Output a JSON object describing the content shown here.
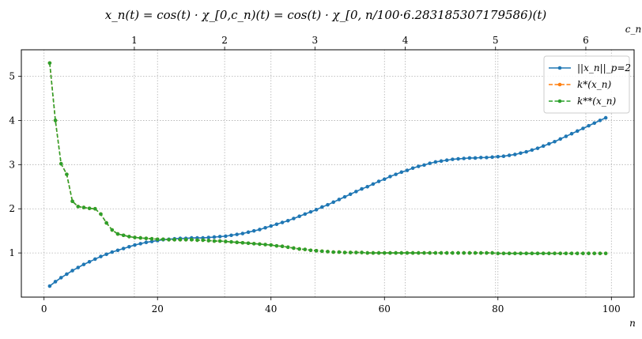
{
  "chart_data": {
    "type": "line",
    "title": "x_n(t) = cos(t) · χ_[0,c_n)(t) = cos(t) · χ_[0, n/100·6.283185307179586)(t)",
    "xlabel": "n",
    "x2label": "c_n",
    "ylabel": "",
    "xlim": [
      -4,
      104
    ],
    "ylim": [
      0.0,
      5.6
    ],
    "x_ticks": [
      0,
      20,
      40,
      60,
      80,
      100
    ],
    "y_ticks": [
      1,
      2,
      3,
      4,
      5
    ],
    "x2_ticks": [
      1,
      2,
      3,
      4,
      5,
      6
    ],
    "x2_scale_per_n": 0.06283185307179585,
    "grid": true,
    "legend_position": "upper-right",
    "x": [
      1,
      2,
      3,
      4,
      5,
      6,
      7,
      8,
      9,
      10,
      11,
      12,
      13,
      14,
      15,
      16,
      17,
      18,
      19,
      20,
      21,
      22,
      23,
      24,
      25,
      26,
      27,
      28,
      29,
      30,
      31,
      32,
      33,
      34,
      35,
      36,
      37,
      38,
      39,
      40,
      41,
      42,
      43,
      44,
      45,
      46,
      47,
      48,
      49,
      50,
      51,
      52,
      53,
      54,
      55,
      56,
      57,
      58,
      59,
      60,
      61,
      62,
      63,
      64,
      65,
      66,
      67,
      68,
      69,
      70,
      71,
      72,
      73,
      74,
      75,
      76,
      77,
      78,
      79,
      80,
      81,
      82,
      83,
      84,
      85,
      86,
      87,
      88,
      89,
      90,
      91,
      92,
      93,
      94,
      95,
      96,
      97,
      98,
      99
    ],
    "series": [
      {
        "name": "||x_n||_p=2",
        "color": "#1f77b4",
        "linestyle": "solid",
        "values": [
          0.25,
          0.35,
          0.44,
          0.52,
          0.6,
          0.67,
          0.74,
          0.8,
          0.86,
          0.92,
          0.97,
          1.02,
          1.06,
          1.1,
          1.14,
          1.18,
          1.21,
          1.24,
          1.26,
          1.28,
          1.3,
          1.31,
          1.32,
          1.33,
          1.33,
          1.34,
          1.34,
          1.34,
          1.35,
          1.36,
          1.37,
          1.38,
          1.4,
          1.42,
          1.44,
          1.47,
          1.5,
          1.53,
          1.57,
          1.61,
          1.65,
          1.69,
          1.73,
          1.78,
          1.83,
          1.88,
          1.93,
          1.98,
          2.04,
          2.09,
          2.15,
          2.21,
          2.27,
          2.33,
          2.39,
          2.45,
          2.5,
          2.56,
          2.62,
          2.67,
          2.73,
          2.78,
          2.83,
          2.87,
          2.92,
          2.96,
          2.99,
          3.03,
          3.06,
          3.08,
          3.1,
          3.12,
          3.13,
          3.14,
          3.15,
          3.15,
          3.16,
          3.16,
          3.17,
          3.18,
          3.19,
          3.21,
          3.23,
          3.26,
          3.29,
          3.33,
          3.37,
          3.42,
          3.47,
          3.52,
          3.58,
          3.64,
          3.7,
          3.76,
          3.82,
          3.88,
          3.94,
          4.0,
          4.06
        ]
      },
      {
        "name": "k*(x_n)",
        "color": "#ff7f0e",
        "linestyle": "dashed",
        "values": [
          5.3,
          4.0,
          3.02,
          2.78,
          2.17,
          2.05,
          2.03,
          2.01,
          2.0,
          1.88,
          1.68,
          1.52,
          1.43,
          1.4,
          1.37,
          1.35,
          1.34,
          1.33,
          1.32,
          1.31,
          1.31,
          1.3,
          1.3,
          1.3,
          1.3,
          1.3,
          1.29,
          1.29,
          1.28,
          1.27,
          1.27,
          1.26,
          1.25,
          1.24,
          1.23,
          1.22,
          1.21,
          1.2,
          1.19,
          1.18,
          1.16,
          1.15,
          1.13,
          1.11,
          1.09,
          1.08,
          1.06,
          1.05,
          1.04,
          1.03,
          1.02,
          1.02,
          1.01,
          1.01,
          1.01,
          1.01,
          1.0,
          1.0,
          1.0,
          1.0,
          1.0,
          1.0,
          1.0,
          1.0,
          1.0,
          1.0,
          1.0,
          1.0,
          1.0,
          1.0,
          1.0,
          1.0,
          1.0,
          1.0,
          1.0,
          1.0,
          1.0,
          1.0,
          1.0,
          0.99,
          0.99,
          0.99,
          0.99,
          0.99,
          0.99,
          0.99,
          0.99,
          0.99,
          0.99,
          0.99,
          0.99,
          0.99,
          0.99,
          0.99,
          0.99,
          0.99,
          0.99,
          0.99,
          0.99
        ]
      },
      {
        "name": "k**(x_n)",
        "color": "#2ca02c",
        "linestyle": "dashed",
        "values": [
          5.3,
          4.0,
          3.02,
          2.78,
          2.17,
          2.05,
          2.03,
          2.01,
          2.0,
          1.88,
          1.68,
          1.52,
          1.43,
          1.4,
          1.37,
          1.35,
          1.34,
          1.33,
          1.32,
          1.31,
          1.31,
          1.3,
          1.3,
          1.3,
          1.3,
          1.3,
          1.29,
          1.29,
          1.28,
          1.27,
          1.27,
          1.26,
          1.25,
          1.24,
          1.23,
          1.22,
          1.21,
          1.2,
          1.19,
          1.18,
          1.16,
          1.15,
          1.13,
          1.11,
          1.09,
          1.08,
          1.06,
          1.05,
          1.04,
          1.03,
          1.02,
          1.02,
          1.01,
          1.01,
          1.01,
          1.01,
          1.0,
          1.0,
          1.0,
          1.0,
          1.0,
          1.0,
          1.0,
          1.0,
          1.0,
          1.0,
          1.0,
          1.0,
          1.0,
          1.0,
          1.0,
          1.0,
          1.0,
          1.0,
          1.0,
          1.0,
          1.0,
          1.0,
          1.0,
          0.99,
          0.99,
          0.99,
          0.99,
          0.99,
          0.99,
          0.99,
          0.99,
          0.99,
          0.99,
          0.99,
          0.99,
          0.99,
          0.99,
          0.99,
          0.99,
          0.99,
          0.99,
          0.99,
          0.99
        ]
      }
    ]
  }
}
